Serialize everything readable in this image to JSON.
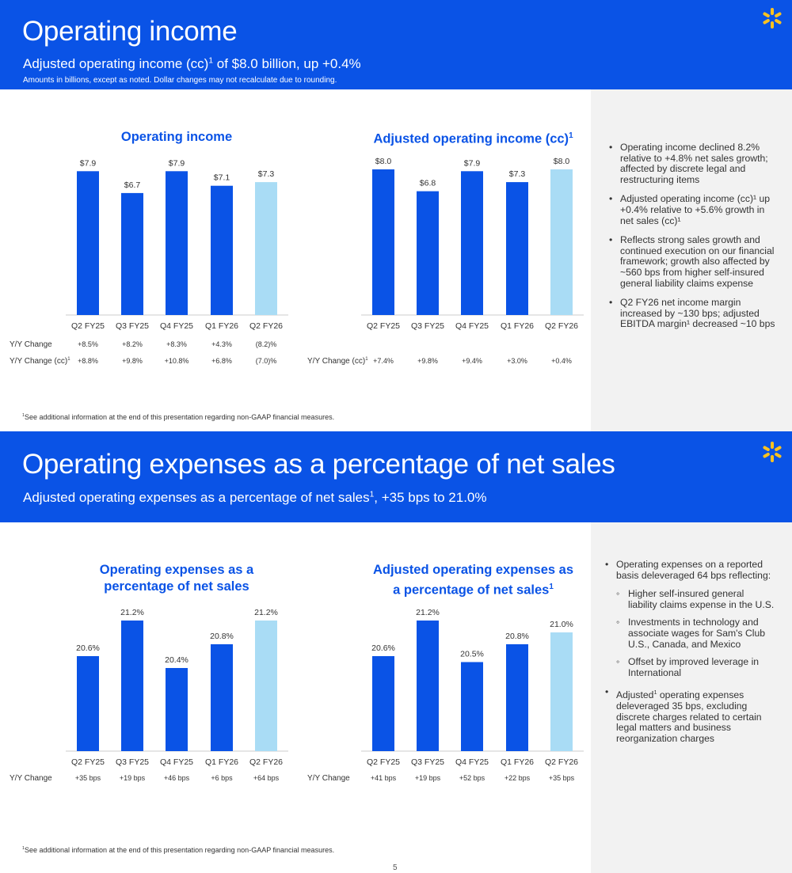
{
  "colors": {
    "brand_blue": "#0a53e6",
    "bar_dark": "#0a53e6",
    "bar_light": "#a9dcf5",
    "spark_yellow": "#ffc220",
    "sidebar_bg": "#f2f2f2"
  },
  "section1": {
    "title": "Operating income",
    "subtitle_main": "Adjusted operating income (cc)",
    "subtitle_sup": "1",
    "subtitle_rest": " of $8.0 billion, up +0.4%",
    "note": "Amounts in billions, except as noted.  Dollar changes may not recalculate due to rounding.",
    "footnote_sup": "1",
    "footnote": "See additional information at the end of this presentation regarding non-GAAP financial measures.",
    "bullets": [
      "Operating income declined 8.2% relative to +4.8% net sales growth; affected by discrete legal and restructuring items",
      "Adjusted operating income (cc)¹ up +0.4% relative to +5.6% growth in net sales (cc)¹",
      "Reflects strong sales growth and continued execution on our financial framework; growth also affected by ~560 bps from higher self-insured general liability claims expense",
      "Q2 FY26 net income margin increased by ~130 bps; adjusted EBITDA margin¹ decreased ~10 bps"
    ]
  },
  "section2": {
    "title": "Operating expenses as a percentage of net sales",
    "subtitle_main": "Adjusted operating expenses as a percentage of net sales",
    "subtitle_sup": "1",
    "subtitle_rest": ", +35 bps to 21.0%",
    "footnote_sup": "1",
    "footnote": "See additional information at the end of this presentation regarding non-GAAP financial measures.",
    "bullets": [
      {
        "text": "Operating expenses on a reported basis deleveraged 64 bps reflecting:",
        "sub": [
          "Higher self-insured general liability claims expense in the U.S.",
          "Investments in technology and associate wages for Sam's Club U.S., Canada, and Mexico",
          "Offset by improved leverage in International"
        ]
      },
      {
        "text_pre": "Adjusted",
        "text_sup": "1",
        "text_post": " operating expenses deleveraged 35 bps, excluding discrete charges related to certain legal matters and business reorganization charges"
      }
    ]
  },
  "page_number": "5",
  "chart_data": [
    {
      "type": "bar",
      "title": "Operating income",
      "categories": [
        "Q2 FY25",
        "Q3 FY25",
        "Q4 FY25",
        "Q1 FY26",
        "Q2 FY26"
      ],
      "values": [
        7.9,
        6.7,
        7.9,
        7.1,
        7.3
      ],
      "value_labels": [
        "$7.9",
        "$6.7",
        "$7.9",
        "$7.1",
        "$7.3"
      ],
      "highlight_last": true,
      "ylim": [
        0,
        8
      ],
      "rows": [
        {
          "label": "Y/Y Change",
          "values": [
            "+8.5%",
            "+8.2%",
            "+8.3%",
            "+4.3%",
            "(8.2)%"
          ]
        },
        {
          "label": "Y/Y Change (cc)",
          "label_sup": "1",
          "values": [
            "+8.8%",
            "+9.8%",
            "+10.8%",
            "+6.8%",
            "(7.0)%"
          ]
        }
      ]
    },
    {
      "type": "bar",
      "title": "Adjusted operating income (cc)",
      "title_sup": "1",
      "categories": [
        "Q2 FY25",
        "Q3 FY25",
        "Q4 FY25",
        "Q1 FY26",
        "Q2 FY26"
      ],
      "values": [
        8.0,
        6.8,
        7.9,
        7.3,
        8.0
      ],
      "value_labels": [
        "$8.0",
        "$6.8",
        "$7.9",
        "$7.3",
        "$8.0"
      ],
      "highlight_last": true,
      "ylim": [
        0,
        8
      ],
      "rows": [
        {
          "label": "Y/Y Change (cc)",
          "label_sup": "1",
          "values": [
            "+7.4%",
            "+9.8%",
            "+9.4%",
            "+3.0%",
            "+0.4%"
          ]
        }
      ]
    },
    {
      "type": "bar",
      "title_line1": "Operating expenses as a",
      "title_line2": "percentage of net sales",
      "categories": [
        "Q2 FY25",
        "Q3 FY25",
        "Q4 FY25",
        "Q1 FY26",
        "Q2 FY26"
      ],
      "values": [
        20.6,
        21.2,
        20.4,
        20.8,
        21.2
      ],
      "value_labels": [
        "20.6%",
        "21.2%",
        "20.4%",
        "20.8%",
        "21.2%"
      ],
      "highlight_last": true,
      "ylim": [
        19,
        21.2
      ],
      "rows": [
        {
          "label": "Y/Y Change",
          "values": [
            "+35 bps",
            "+19 bps",
            "+46 bps",
            "+6 bps",
            "+64 bps"
          ]
        }
      ]
    },
    {
      "type": "bar",
      "title_line1": "Adjusted operating expenses as",
      "title_line2": "a percentage of net sales",
      "title_sup": "1",
      "categories": [
        "Q2 FY25",
        "Q3 FY25",
        "Q4 FY25",
        "Q1 FY26",
        "Q2 FY26"
      ],
      "values": [
        20.6,
        21.2,
        20.5,
        20.8,
        21.0
      ],
      "value_labels": [
        "20.6%",
        "21.2%",
        "20.5%",
        "20.8%",
        "21.0%"
      ],
      "highlight_last": true,
      "ylim": [
        19,
        21.2
      ],
      "rows": [
        {
          "label": "Y/Y Change",
          "values": [
            "+41 bps",
            "+19 bps",
            "+52 bps",
            "+22 bps",
            "+35 bps"
          ]
        }
      ]
    }
  ]
}
